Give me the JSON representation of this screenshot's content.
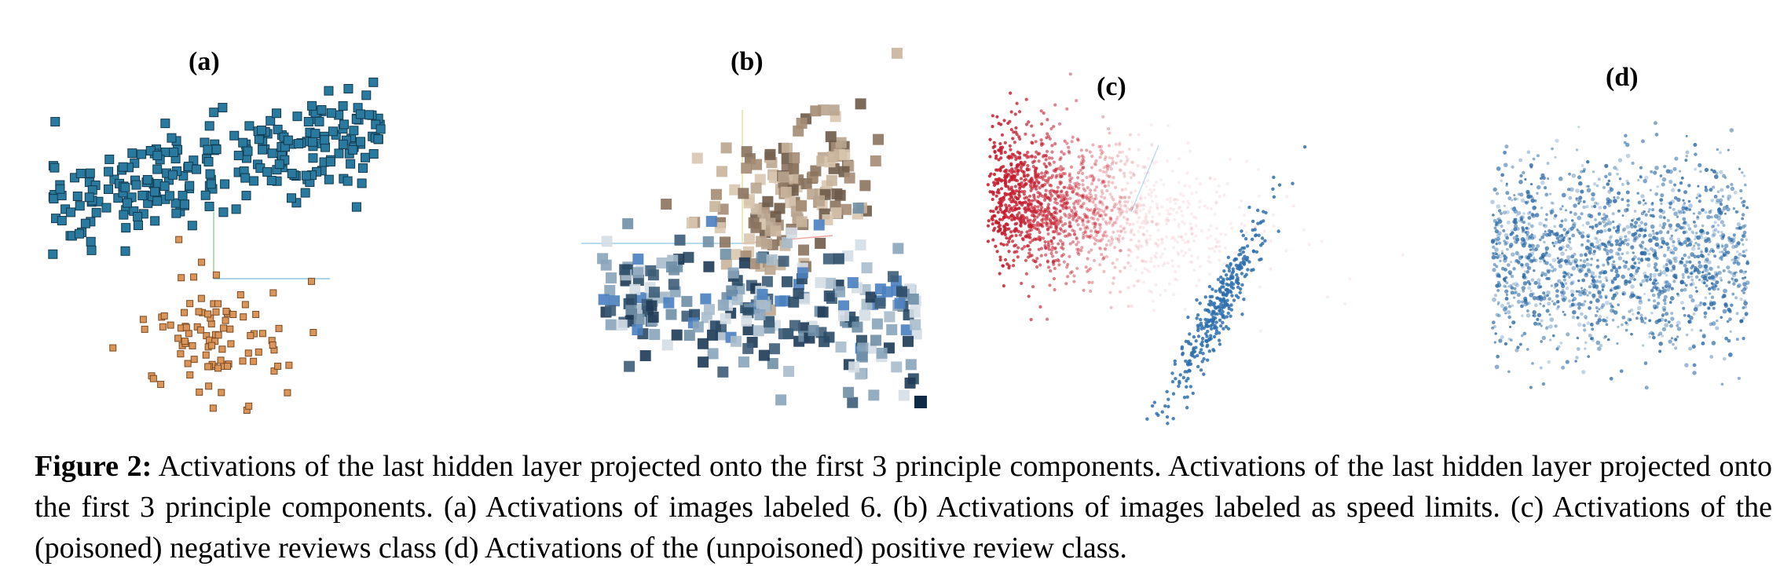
{
  "panels": [
    {
      "label": "(a)",
      "colors": [
        "#2a7aa0",
        "#d9955a"
      ]
    },
    {
      "label": "(b)",
      "colors": [
        "#a48c74",
        "#4f6f8a"
      ]
    },
    {
      "label": "(c)",
      "colors": [
        "#c51e2e",
        "#2e6fae"
      ]
    },
    {
      "label": "(d)",
      "colors": [
        "#2c6aa6"
      ]
    }
  ],
  "caption": {
    "prefix": "Figure 2:",
    "text": "Activations of the last hidden layer projected onto the first 3 principle components. Activations of the last hidden layer projected onto the first 3 principle components. (a) Activations of images labeled 6. (b) Activations of images labeled as speed limits. (c) Activations of the (poisoned) negative reviews class (d) Activations of the (unpoisoned) positive review class."
  }
}
